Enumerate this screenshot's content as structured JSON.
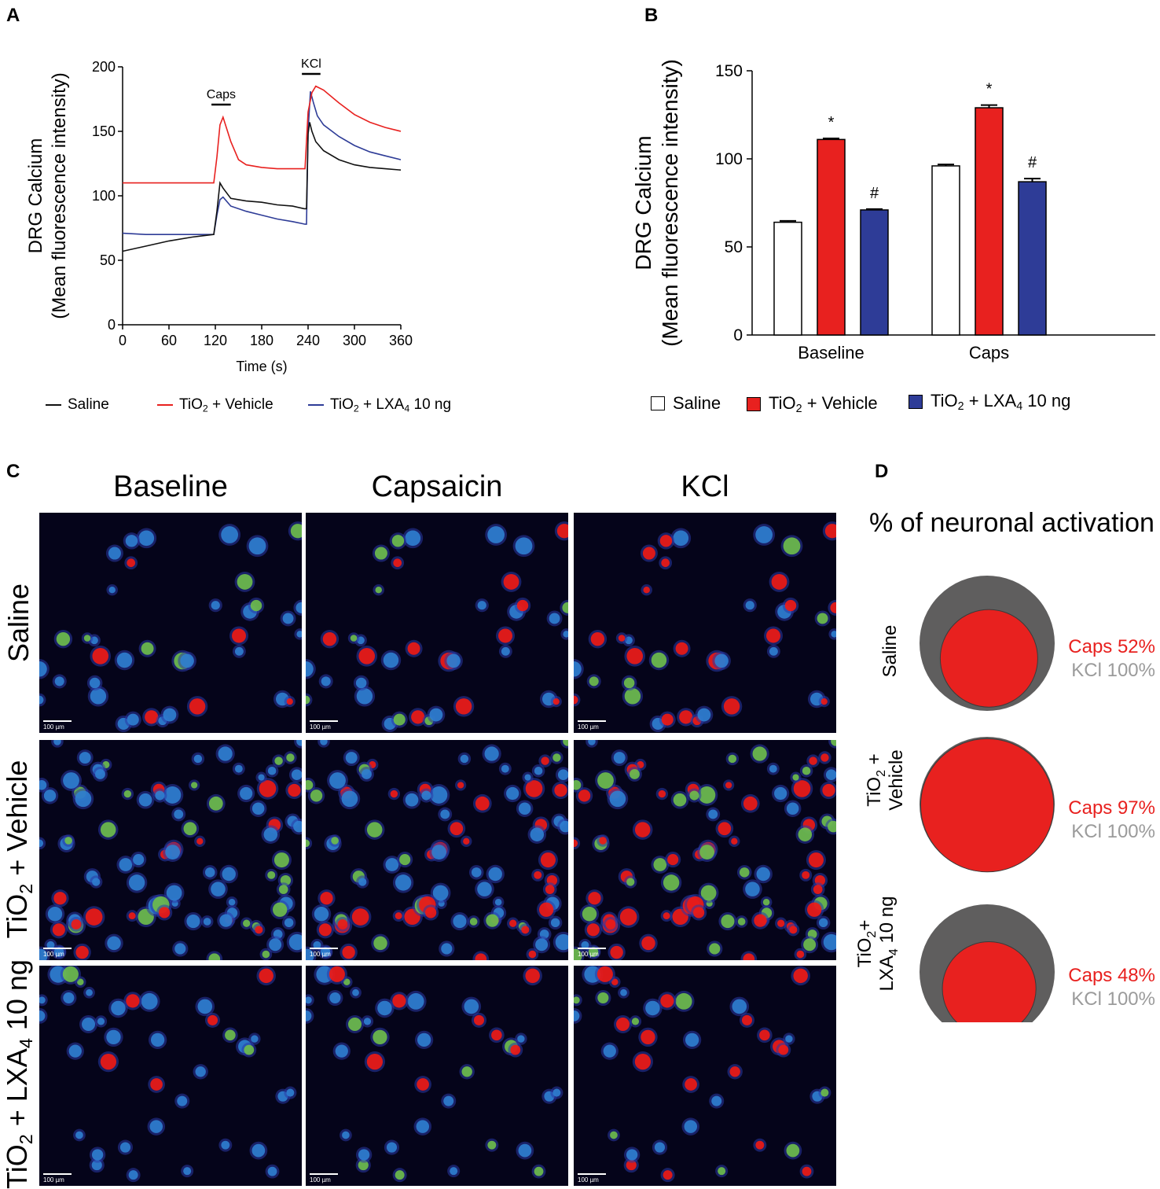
{
  "panel_letters": {
    "a": "A",
    "b": "B",
    "c": "C",
    "d": "D"
  },
  "colors": {
    "saline": "#111111",
    "vehicle": "#e8211f",
    "lxa4": "#2e3c97",
    "kcl_gray": "#9b9b9b",
    "disk_gray": "#5f5e5e"
  },
  "chart_data": [
    {
      "type": "line",
      "panel": "A",
      "xlabel": "Time (s)",
      "ylabel_line1": "DRG Calcium",
      "ylabel_line2": "(Mean fluorescence intensity)",
      "xlim": [
        0,
        360
      ],
      "ylim": [
        0,
        200
      ],
      "xticks": [
        "0",
        "60",
        "120",
        "180",
        "240",
        "300",
        "360"
      ],
      "yticks": [
        "0",
        "50",
        "100",
        "150",
        "200"
      ],
      "annotations": [
        {
          "label": "Caps",
          "x_start": 115,
          "x_end": 140
        },
        {
          "label": "KCl",
          "x_start": 232,
          "x_end": 256
        }
      ],
      "series": [
        {
          "name": "Saline",
          "x": [
            0,
            30,
            60,
            90,
            118,
            122,
            126,
            130,
            140,
            160,
            180,
            200,
            220,
            235,
            238,
            240,
            242,
            245,
            250,
            260,
            280,
            300,
            320,
            340,
            360
          ],
          "y": [
            57,
            61,
            65,
            68,
            70,
            88,
            110,
            106,
            98,
            96,
            95,
            93,
            92,
            90,
            90,
            148,
            157,
            150,
            142,
            135,
            128,
            124,
            122,
            121,
            120
          ]
        },
        {
          "name": "TiO2 + Vehicle",
          "x": [
            0,
            60,
            118,
            122,
            126,
            130,
            140,
            150,
            160,
            180,
            200,
            220,
            236,
            240,
            245,
            250,
            260,
            280,
            300,
            320,
            340,
            360
          ],
          "y": [
            110,
            110,
            110,
            130,
            155,
            161,
            142,
            128,
            124,
            122,
            121,
            121,
            121,
            165,
            180,
            185,
            182,
            172,
            163,
            157,
            153,
            150
          ]
        },
        {
          "name": "TiO2 + LXA4 10 ng",
          "x": [
            0,
            30,
            60,
            90,
            118,
            122,
            126,
            130,
            140,
            160,
            180,
            200,
            220,
            236,
            238,
            240,
            243,
            247,
            252,
            260,
            280,
            300,
            320,
            340,
            360
          ],
          "y": [
            71,
            70,
            70,
            70,
            70,
            85,
            97,
            99,
            92,
            88,
            85,
            82,
            80,
            78,
            78,
            150,
            181,
            172,
            162,
            155,
            146,
            139,
            134,
            131,
            128
          ]
        }
      ],
      "legend": [
        "Saline",
        "TiO",
        "2",
        " + Vehicle",
        " + LXA",
        "4",
        " 10 ng"
      ]
    },
    {
      "type": "bar",
      "panel": "B",
      "ylabel_line1": "DRG Calcium",
      "ylabel_line2": "(Mean fluorescence intensity)",
      "ylim": [
        0,
        150
      ],
      "yticks": [
        "0",
        "50",
        "100",
        "150"
      ],
      "categories": [
        "Baseline",
        "Caps"
      ],
      "series": [
        {
          "name": "Saline",
          "values": [
            64,
            96
          ],
          "errors": [
            0.8,
            0.8
          ],
          "marks": [
            "",
            ""
          ]
        },
        {
          "name": "TiO2 + Vehicle",
          "values": [
            111,
            129
          ],
          "errors": [
            0.6,
            1.5
          ],
          "marks": [
            "*",
            "*"
          ]
        },
        {
          "name": "TiO2 + LXA4 10 ng",
          "values": [
            71,
            87
          ],
          "errors": [
            0.5,
            1.8
          ],
          "marks": [
            "#",
            "#"
          ]
        }
      ]
    },
    {
      "type": "other",
      "panel": "D",
      "title": "% of neuronal activation",
      "rows": [
        {
          "label_lines": [
            "Saline"
          ],
          "caps_pct": 52,
          "kcl_pct": 100,
          "caps_text": "Caps 52%",
          "kcl_text": "KCl 100%"
        },
        {
          "label_lines": [
            "TiO",
            "2",
            " +",
            "Vehicle"
          ],
          "caps_pct": 97,
          "kcl_pct": 100,
          "caps_text": "Caps 97%",
          "kcl_text": "KCl 100%"
        },
        {
          "label_lines": [
            "TiO",
            "2",
            "+",
            "LXA",
            "4",
            " 10 ng"
          ],
          "caps_pct": 48,
          "kcl_pct": 100,
          "caps_text": "Caps 48%",
          "kcl_text": "KCl 100%"
        }
      ]
    }
  ],
  "panel_c": {
    "columns": [
      "Baseline",
      "Capsaicin",
      "KCl"
    ],
    "rows": [
      {
        "label": "Saline",
        "density": 1
      },
      {
        "label_main": "TiO",
        "label_sub": "2",
        "label_rest": " + Vehicle",
        "density": 3
      },
      {
        "label_main": "TiO",
        "label_sub": "2",
        "label_rest": " + LXA",
        "label_sub2": "4",
        "label_end": " 10 ng",
        "density": 1
      }
    ],
    "scale_label": "100 µm"
  }
}
